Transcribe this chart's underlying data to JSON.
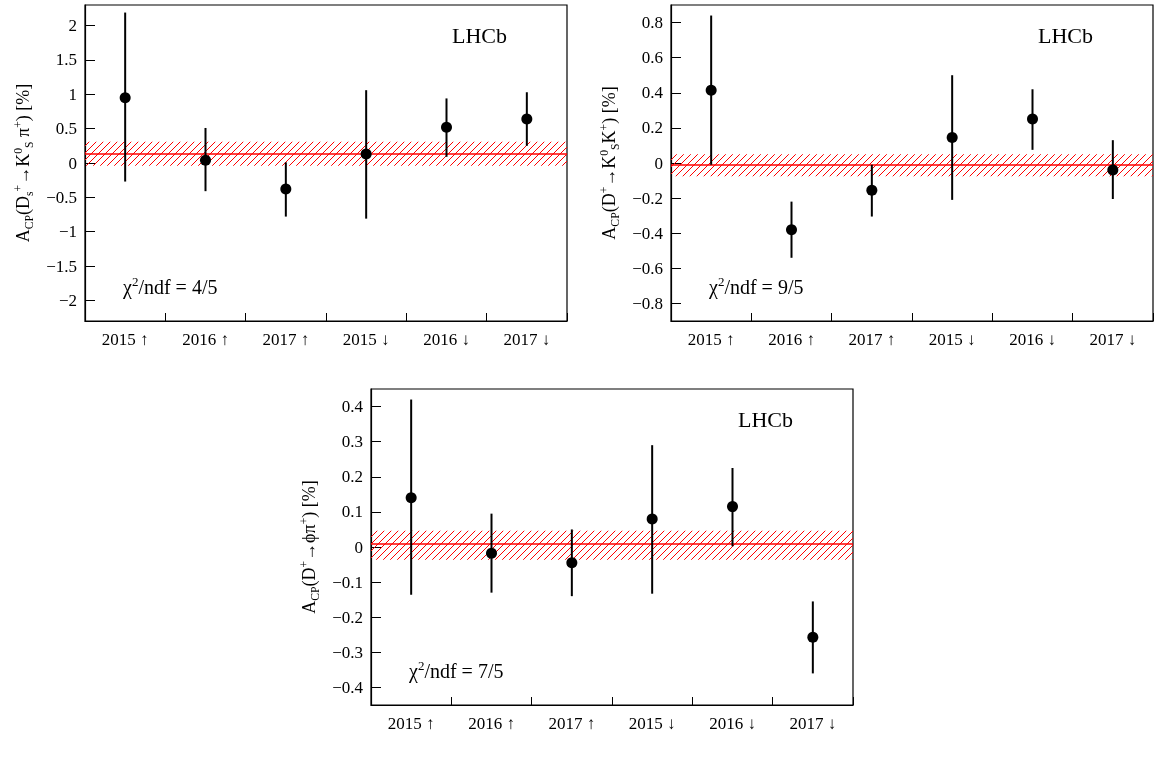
{
  "chart_data": [
    {
      "type": "scatter",
      "categories": [
        "2015 ↑",
        "2016 ↑",
        "2017 ↑",
        "2015 ↓",
        "2016 ↓",
        "2017 ↓"
      ],
      "color": "#000000",
      "marker": "circle",
      "values": [
        0.95,
        0.04,
        -0.38,
        0.13,
        0.52,
        0.64
      ],
      "errors": [
        [
          -0.27,
          2.19
        ],
        [
          -0.41,
          0.51
        ],
        [
          -0.78,
          0.01
        ],
        [
          -0.81,
          1.06
        ],
        [
          0.09,
          0.94
        ],
        [
          0.25,
          1.03
        ]
      ],
      "ylim": [
        -2.3,
        2.3
      ],
      "yticks": [
        -2,
        -1.5,
        -1,
        -0.5,
        0,
        0.5,
        1,
        1.5,
        2
      ],
      "ylabel": "A$_{CP}$(D$_{s}$$^{+}$→K$^{0}$$_{S}$ π$^{+}$) [%]",
      "annotations": [
        "LHCb",
        "χ$^{2}$/ndf = 4/5"
      ],
      "ref_lines": [
        {
          "axis": "y",
          "value": 0.13,
          "color": "#ff0000"
        }
      ],
      "bands": [
        {
          "axis": "y",
          "from": -0.04,
          "to": 0.31,
          "color": "#ff0000"
        }
      ]
    },
    {
      "type": "scatter",
      "categories": [
        "2015 ↑",
        "2016 ↑",
        "2017 ↑",
        "2015 ↓",
        "2016 ↓",
        "2017 ↓"
      ],
      "color": "#000000",
      "marker": "circle",
      "values": [
        0.415,
        -0.38,
        -0.155,
        0.145,
        0.25,
        -0.04
      ],
      "errors": [
        [
          -0.01,
          0.84
        ],
        [
          -0.54,
          -0.22
        ],
        [
          -0.305,
          -0.01
        ],
        [
          -0.21,
          0.5
        ],
        [
          0.075,
          0.42
        ],
        [
          -0.205,
          0.13
        ]
      ],
      "ylim": [
        -0.9,
        0.9
      ],
      "yticks": [
        -0.8,
        -0.6,
        -0.4,
        -0.2,
        0,
        0.2,
        0.4,
        0.6,
        0.8
      ],
      "ylabel": "A$_{CP}$(D$^{+}$→K$^{0}$$_{S}$K$^{+}$) [%]",
      "annotations": [
        "LHCb",
        "χ$^{2}$/ndf = 9/5"
      ],
      "ref_lines": [
        {
          "axis": "y",
          "value": -0.01,
          "color": "#ff0000"
        }
      ],
      "bands": [
        {
          "axis": "y",
          "from": -0.075,
          "to": 0.05,
          "color": "#ff0000"
        }
      ]
    },
    {
      "type": "scatter",
      "categories": [
        "2015 ↑",
        "2016 ↑",
        "2017 ↑",
        "2015 ↓",
        "2016 ↓",
        "2017 ↓"
      ],
      "color": "#000000",
      "marker": "circle",
      "values": [
        0.14,
        -0.018,
        -0.045,
        0.08,
        0.115,
        -0.257
      ],
      "errors": [
        [
          -0.136,
          0.42
        ],
        [
          -0.13,
          0.095
        ],
        [
          -0.14,
          0.05
        ],
        [
          -0.133,
          0.29
        ],
        [
          0.002,
          0.225
        ],
        [
          -0.36,
          -0.155
        ]
      ],
      "ylim": [
        -0.45,
        0.45
      ],
      "yticks": [
        -0.4,
        -0.3,
        -0.2,
        -0.1,
        0,
        0.1,
        0.2,
        0.3,
        0.4
      ],
      "ylabel": "A$_{CP}$(D$^{+}$→ϕπ$^{+}$) [%]",
      "annotations": [
        "LHCb",
        "χ$^{2}$/ndf = 7/5"
      ],
      "ref_lines": [
        {
          "axis": "y",
          "value": 0.006,
          "color": "#ff0000"
        }
      ],
      "bands": [
        {
          "axis": "y",
          "from": -0.036,
          "to": 0.046,
          "color": "#ff0000"
        }
      ]
    }
  ]
}
